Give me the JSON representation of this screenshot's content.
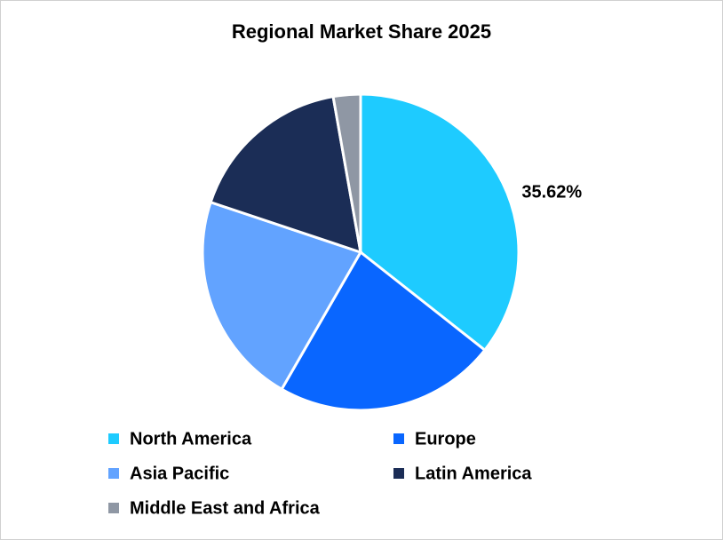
{
  "chart_data": {
    "type": "pie",
    "title": "Regional Market Share 2025",
    "categories": [
      "North America",
      "Europe",
      "Asia Pacific",
      "Latin America",
      "Middle East and Africa"
    ],
    "values": [
      35.62,
      22.7,
      21.8,
      17.1,
      2.78
    ],
    "value_labels": [
      "35.62%",
      null,
      null,
      null,
      null
    ],
    "colors": [
      "#1ecbff",
      "#0966ff",
      "#62a3ff",
      "#1b2d56",
      "#8f97a4"
    ]
  }
}
